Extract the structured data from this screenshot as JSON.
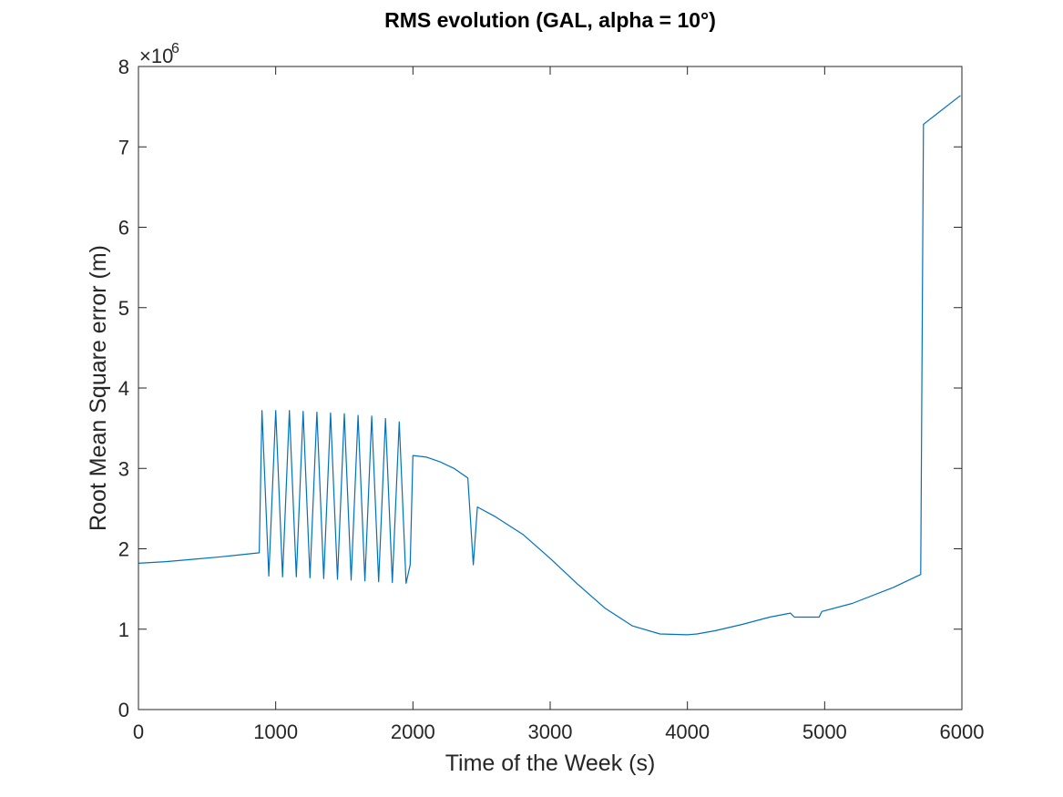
{
  "chart_data": {
    "type": "line",
    "title": "RMS evolution (GAL, alpha = 10°)",
    "xlabel": "Time of the Week (s)",
    "ylabel": "Root Mean Square error (m)",
    "xlim": [
      0,
      6000
    ],
    "ylim": [
      0,
      8
    ],
    "y_multiplier": "×10",
    "y_multiplier_exponent": "6",
    "x_ticks": [
      "0",
      "1000",
      "2000",
      "3000",
      "4000",
      "5000",
      "6000"
    ],
    "y_ticks": [
      "0",
      "1",
      "2",
      "3",
      "4",
      "5",
      "6",
      "7",
      "8"
    ],
    "x_tick_values": [
      0,
      1000,
      2000,
      3000,
      4000,
      5000,
      6000
    ],
    "y_tick_values": [
      0,
      1,
      2,
      3,
      4,
      5,
      6,
      7,
      8
    ],
    "grid": false,
    "box": true,
    "line_color": "#0072bd",
    "series": [
      {
        "x": [
          0,
          200,
          400,
          600,
          880,
          900,
          950,
          1000,
          1050,
          1100,
          1150,
          1200,
          1250,
          1300,
          1350,
          1400,
          1450,
          1500,
          1550,
          1600,
          1650,
          1700,
          1750,
          1800,
          1850,
          1900,
          1950,
          1980,
          2000,
          2100,
          2200,
          2300,
          2400,
          2440,
          2470,
          2600,
          2800,
          3000,
          3200,
          3400,
          3600,
          3800,
          4000,
          4070,
          4200,
          4400,
          4600,
          4750,
          4780,
          4960,
          4980,
          5200,
          5500,
          5700,
          5720,
          5810,
          5990
        ],
        "y": [
          1.82,
          1.84,
          1.87,
          1.9,
          1.95,
          3.72,
          1.66,
          3.72,
          1.65,
          3.72,
          1.65,
          3.71,
          1.64,
          3.7,
          1.63,
          3.69,
          1.62,
          3.68,
          1.61,
          3.66,
          1.6,
          3.65,
          1.59,
          3.62,
          1.58,
          3.58,
          1.57,
          1.8,
          3.16,
          3.14,
          3.08,
          3.0,
          2.88,
          1.8,
          2.52,
          2.4,
          2.18,
          1.88,
          1.56,
          1.26,
          1.04,
          0.94,
          0.93,
          0.94,
          0.98,
          1.06,
          1.15,
          1.2,
          1.15,
          1.15,
          1.22,
          1.32,
          1.52,
          1.68,
          7.28,
          7.4,
          7.64
        ]
      }
    ]
  }
}
